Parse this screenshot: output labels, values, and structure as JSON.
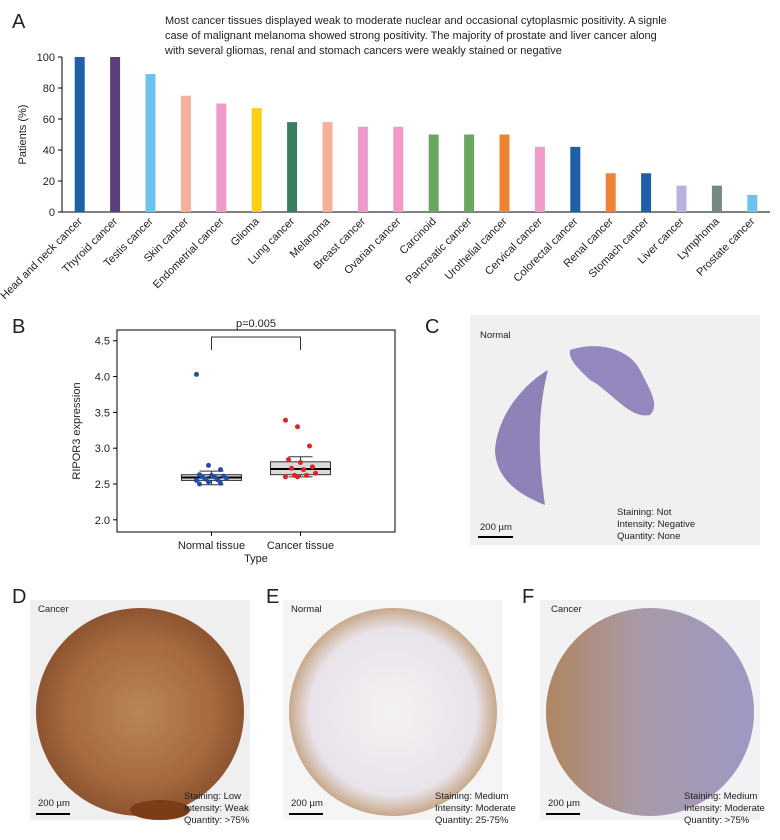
{
  "chart_data": [
    {
      "type": "bar",
      "panel": "A",
      "annotation": [
        "Most cancer tissues displayed weak to moderate nuclear and occasional cytoplasmic positivity. A signle",
        "case of malignant melanoma showed strong positivity. The majority of prostate and liver cancer along",
        "with several gliomas, renal and stomach cancers were weakly stained or negative"
      ],
      "ylabel": "Patients (%)",
      "categories": [
        "Head and neck cancer",
        "Thyroid cancer",
        "Testis cancer",
        "Skin cancer",
        "Endometrial cancer",
        "Glioma",
        "Lung cancer",
        "Melanoma",
        "Breast cancer",
        "Ovarian cancer",
        "Carcinoid",
        "Pancreatic cancer",
        "Urothelial cancer",
        "Cervical cancer",
        "Colorectal cancer",
        "Renal cancer",
        "Stomach cancer",
        "Liver cancer",
        "Lymphoma",
        "Prostate cancer"
      ],
      "values": [
        100,
        100,
        89,
        75,
        70,
        67,
        58,
        58,
        55,
        55,
        50,
        50,
        50,
        42,
        42,
        25,
        25,
        17,
        17,
        11
      ],
      "colors": [
        "#1f5fa8",
        "#5b3f7a",
        "#6cc4ee",
        "#f5b09a",
        "#ef9ac8",
        "#f7d015",
        "#3a7d5f",
        "#f5b09a",
        "#ef9ac8",
        "#ef9ac8",
        "#6aa660",
        "#6aa660",
        "#ef8235",
        "#ef9ac8",
        "#1f5fa8",
        "#ef8235",
        "#1f5fa8",
        "#b8b2dc",
        "#748781",
        "#6cc4ee"
      ],
      "ylim": [
        0,
        100
      ],
      "yticks": [
        0,
        20,
        40,
        60,
        80,
        100
      ]
    },
    {
      "type": "box",
      "panel": "B",
      "xlabel": "Type",
      "ylabel": "RIPOR3 expression",
      "annotation": "p=0.005",
      "categories": [
        "Normal tissue",
        "Cancer tissue"
      ],
      "boxes": [
        {
          "low": 2.49,
          "q1": 2.55,
          "median": 2.59,
          "q3": 2.63,
          "high": 2.68,
          "point_color": "#1f4fa8",
          "points": [
            4.03,
            2.76,
            2.7,
            2.63,
            2.62,
            2.61,
            2.6,
            2.6,
            2.58,
            2.57,
            2.56,
            2.55,
            2.53,
            2.51,
            2.5
          ]
        },
        {
          "low": 2.6,
          "q1": 2.63,
          "median": 2.71,
          "q3": 2.81,
          "high": 2.88,
          "point_color": "#e02424",
          "points": [
            3.39,
            3.3,
            3.03,
            2.84,
            2.8,
            2.74,
            2.72,
            2.7,
            2.65,
            2.62,
            2.62,
            2.6,
            2.6
          ]
        }
      ],
      "ylim": [
        1.83,
        4.65
      ],
      "yticks": [
        {
          "value": 2,
          "label": "2.0"
        },
        2.5,
        {
          "value": 3,
          "label": "3.0"
        },
        3.5,
        {
          "value": 4,
          "label": "4.0"
        },
        4.5
      ]
    }
  ],
  "images": [
    {
      "panel": "C",
      "tissue": "Normal",
      "staining": "Staining: Not",
      "intensity": "Intensity: Negative",
      "quantity": "Quantity: None",
      "scale": "200 µm"
    },
    {
      "panel": "D",
      "tissue": "Cancer",
      "staining": "Staining: Low",
      "intensity": "Intensity: Weak",
      "quantity": "Quantity: >75%",
      "scale": "200 µm"
    },
    {
      "panel": "E",
      "tissue": "Normal",
      "staining": "Staining: Medium",
      "intensity": "Intensity: Moderate",
      "quantity": "Quantity: 25-75%",
      "scale": "200 µm"
    },
    {
      "panel": "F",
      "tissue": "Cancer",
      "staining": "Staining: Medium",
      "intensity": "Intensity: Moderate",
      "quantity": "Quantity: >75%",
      "scale": "200 µm"
    }
  ]
}
